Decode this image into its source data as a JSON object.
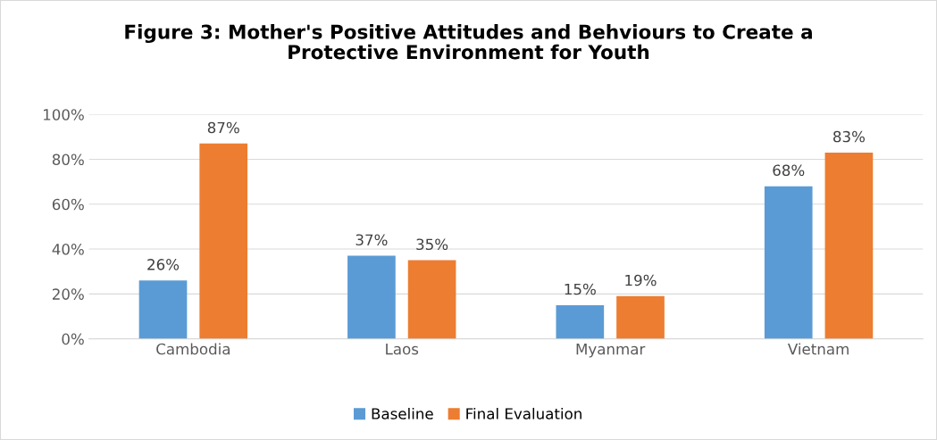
{
  "chart_data": {
    "type": "bar",
    "title": "Figure 3: Mother's Positive Attitudes and Behviours to Create a\nProtective Environment for Youth",
    "categories": [
      "Cambodia",
      "Laos",
      "Myanmar",
      "Vietnam"
    ],
    "series": [
      {
        "name": "Baseline",
        "color": "#5b9bd5",
        "values": [
          26,
          37,
          15,
          68
        ],
        "value_labels": [
          "26%",
          "37%",
          "15%",
          "68%"
        ]
      },
      {
        "name": "Final Evaluation",
        "color": "#ed7d31",
        "values": [
          87,
          35,
          19,
          83
        ],
        "value_labels": [
          "87%",
          "35%",
          "19%",
          "83%"
        ]
      }
    ],
    "ylim": [
      0,
      100
    ],
    "yticks": [
      {
        "value": 0,
        "label": "0%"
      },
      {
        "value": 20,
        "label": "20%"
      },
      {
        "value": 40,
        "label": "40%"
      },
      {
        "value": 60,
        "label": "60%"
      },
      {
        "value": 80,
        "label": "80%"
      },
      {
        "value": 100,
        "label": "100%"
      }
    ],
    "grid": "y",
    "legend": "bottom"
  }
}
